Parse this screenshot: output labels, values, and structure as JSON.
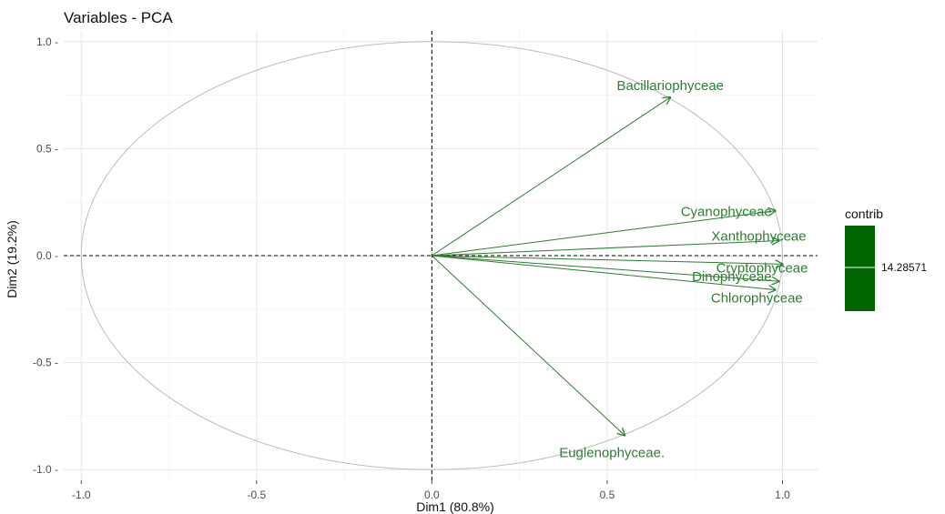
{
  "chart_data": {
    "type": "scatter",
    "title": "Variables - PCA",
    "xlabel": "Dim1 (80.8%)",
    "ylabel": "Dim2 (19.2%)",
    "xlim": [
      -1.05,
      1.1
    ],
    "ylim": [
      -1.05,
      1.05
    ],
    "x_ticks": [
      -1.0,
      -0.5,
      0.0,
      0.5,
      1.0
    ],
    "x_tick_labels": [
      "-1.0",
      "-0.5",
      "0.0",
      "0.5",
      "1.0"
    ],
    "y_ticks": [
      1.0,
      0.5,
      0.0,
      -0.5,
      -1.0
    ],
    "y_tick_labels": [
      "1.0 -",
      "0.5 -",
      "0.0 -",
      "-0.5 -",
      "-1.0 -"
    ],
    "grid": true,
    "unit_circle": true,
    "arrow_color": "#2e7d32",
    "variables": [
      {
        "name": "Bacillariophyceae",
        "x": 0.68,
        "y": 0.74
      },
      {
        "name": "Cyanophyceae",
        "x": 0.98,
        "y": 0.21
      },
      {
        "name": "Xanthophyceae",
        "x": 0.99,
        "y": 0.07
      },
      {
        "name": "Cryptophyceae",
        "x": 1.0,
        "y": -0.04
      },
      {
        "name": "Dinophyceae",
        "x": 0.99,
        "y": -0.12
      },
      {
        "name": "Chlorophyceae",
        "x": 0.98,
        "y": -0.16
      },
      {
        "name": "Euglenophyceae.",
        "x": 0.55,
        "y": -0.84
      }
    ],
    "legend": {
      "title": "contrib",
      "value_label": "14.28571",
      "color": "#006400",
      "placement": "right"
    }
  }
}
